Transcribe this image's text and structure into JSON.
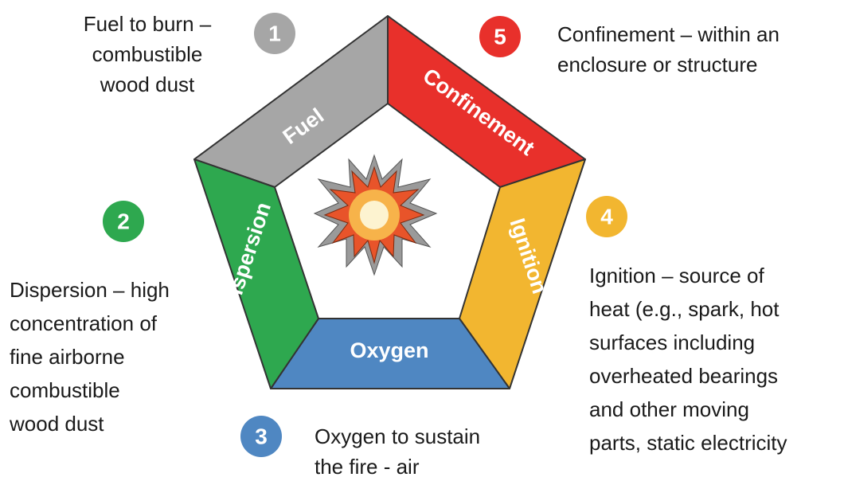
{
  "segments": [
    {
      "number": "1",
      "label": "Fuel",
      "description": [
        "Fuel to burn –",
        "combustible",
        "wood dust"
      ]
    },
    {
      "number": "2",
      "label": "Dispersion",
      "description": [
        "Dispersion – high",
        "concentration of",
        "fine airborne",
        "combustible",
        "wood dust"
      ]
    },
    {
      "number": "3",
      "label": "Oxygen",
      "description": [
        "Oxygen to sustain",
        "the fire - air"
      ]
    },
    {
      "number": "4",
      "label": "Ignition",
      "description": [
        "Ignition – source of",
        "heat (e.g., spark, hot",
        "surfaces including",
        "overheated bearings",
        "and other moving",
        "parts, static electricity"
      ]
    },
    {
      "number": "5",
      "label": "Confinement",
      "description": [
        "Confinement – within an",
        "enclosure or structure"
      ]
    }
  ]
}
